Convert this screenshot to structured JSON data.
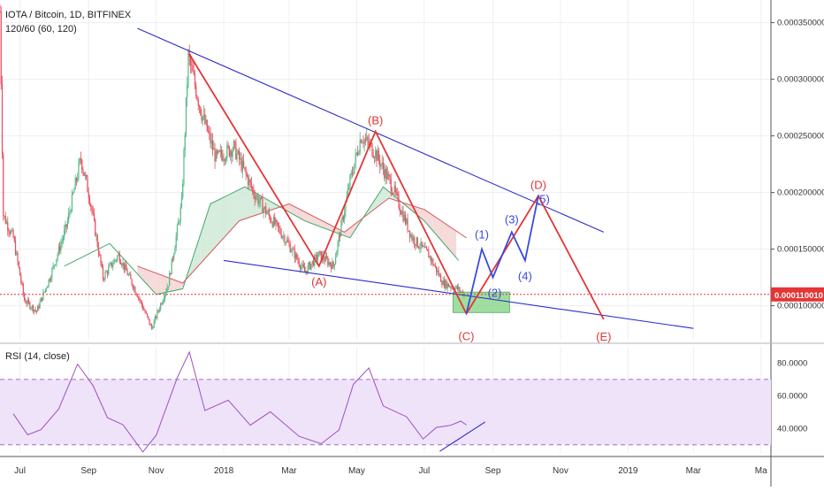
{
  "header": {
    "symbol": "IOTA / Bitcoin, 1D, BITFINEX",
    "ma_label": "120/60 (60, 120)"
  },
  "rsi_panel": {
    "label": "RSI (14, close)"
  },
  "colors": {
    "bull": "#53b987",
    "bear": "#eb4d5c",
    "trend": "#2c2ccc",
    "wave_red": "#e53535",
    "wave_blue": "#3a4ae0",
    "rsi_line": "#9c4fbf",
    "rsi_band": "#efe3fa",
    "price_tag_bg": "#e53535",
    "support_box": "#7fd47f"
  },
  "chart_data": {
    "type": "candlestick",
    "title": "IOTA / Bitcoin, 1D, BITFINEX",
    "x_tick_labels": [
      "Jul",
      "Sep",
      "Nov",
      "2018",
      "Mar",
      "May",
      "Jul",
      "Sep",
      "Nov",
      "2019",
      "Mar",
      "Ma"
    ],
    "y_tick_labels": [
      "0.000350000",
      "0.000300000",
      "0.000250000",
      "0.000200000",
      "0.000150000",
      "0.000100000"
    ],
    "last_price_label": "0.000110010",
    "ylim": [
      7e-05,
      0.00037
    ],
    "price_path": [
      [
        "2017-06-13",
        0.00036
      ],
      [
        "2017-06-16",
        0.00018
      ],
      [
        "2017-06-25",
        0.00016
      ],
      [
        "2017-07-05",
        0.000105
      ],
      [
        "2017-07-16",
        9.5e-05
      ],
      [
        "2017-07-28",
        0.000125
      ],
      [
        "2017-08-12",
        0.00017
      ],
      [
        "2017-08-25",
        0.00023
      ],
      [
        "2017-09-02",
        0.000195
      ],
      [
        "2017-09-14",
        0.000125
      ],
      [
        "2017-09-28",
        0.000145
      ],
      [
        "2017-10-15",
        0.00011
      ],
      [
        "2017-10-28",
        8e-05
      ],
      [
        "2017-11-12",
        0.00012
      ],
      [
        "2017-11-24",
        0.00019
      ],
      [
        "2017-11-30",
        0.00032
      ],
      [
        "2017-12-12",
        0.00027
      ],
      [
        "2017-12-25",
        0.00023
      ],
      [
        "2018-01-10",
        0.00024
      ],
      [
        "2018-01-28",
        0.0002
      ],
      [
        "2018-02-10",
        0.00018
      ],
      [
        "2018-02-25",
        0.00016
      ],
      [
        "2018-03-15",
        0.00013
      ],
      [
        "2018-03-28",
        0.000145
      ],
      [
        "2018-04-10",
        0.000135
      ],
      [
        "2018-04-25",
        0.00021
      ],
      [
        "2018-05-05",
        0.00025
      ],
      [
        "2018-05-18",
        0.000235
      ],
      [
        "2018-06-02",
        0.000205
      ],
      [
        "2018-06-20",
        0.00016
      ],
      [
        "2018-07-05",
        0.000145
      ],
      [
        "2018-07-18",
        0.00012
      ],
      [
        "2018-07-31",
        0.000115
      ],
      [
        "2018-08-06",
        0.00011
      ]
    ],
    "ma_fast": [
      [
        "2017-08-10",
        0.000135
      ],
      [
        "2017-09-20",
        0.000155
      ],
      [
        "2017-11-01",
        0.00011
      ],
      [
        "2017-11-25",
        0.000115
      ],
      [
        "2017-12-20",
        0.00019
      ],
      [
        "2018-01-20",
        0.000205
      ],
      [
        "2018-03-15",
        0.000175
      ],
      [
        "2018-04-25",
        0.00016
      ],
      [
        "2018-05-25",
        0.000205
      ],
      [
        "2018-07-01",
        0.000175
      ],
      [
        "2018-08-01",
        0.00014
      ]
    ],
    "ma_slow": [
      [
        "2017-10-15",
        0.000135
      ],
      [
        "2017-11-25",
        0.00012
      ],
      [
        "2018-01-15",
        0.000175
      ],
      [
        "2018-03-01",
        0.00019
      ],
      [
        "2018-04-20",
        0.000165
      ],
      [
        "2018-05-30",
        0.000195
      ],
      [
        "2018-07-01",
        0.000185
      ],
      [
        "2018-08-08",
        0.00016
      ]
    ],
    "upper_trendline": [
      [
        "2017-10-15",
        0.000345
      ],
      [
        "2018-12-10",
        0.000165
      ]
    ],
    "lower_trendline": [
      [
        "2018-01-01",
        0.00014
      ],
      [
        "2019-03-01",
        8e-05
      ]
    ],
    "elliott_abcde": [
      {
        "label": "",
        "date": "2017-12-01",
        "price": 0.000322
      },
      {
        "label": "(A)",
        "date": "2018-03-28",
        "price": 0.000135
      },
      {
        "label": "(B)",
        "date": "2018-05-18",
        "price": 0.000254
      },
      {
        "label": "(C)",
        "date": "2018-08-08",
        "price": 9.3e-05
      },
      {
        "label": "(D)",
        "date": "2018-10-12",
        "price": 0.000197
      },
      {
        "label": "(E)",
        "date": "2018-12-10",
        "price": 8.8e-05
      }
    ],
    "elliott_12345": [
      {
        "label": "",
        "date": "2018-08-08",
        "price": 9.3e-05
      },
      {
        "label": "(1)",
        "date": "2018-08-22",
        "price": 0.00015
      },
      {
        "label": "(2)",
        "date": "2018-09-01",
        "price": 0.000125
      },
      {
        "label": "(3)",
        "date": "2018-09-18",
        "price": 0.000165
      },
      {
        "label": "(4)",
        "date": "2018-09-30",
        "price": 0.00014
      },
      {
        "label": "(5)",
        "date": "2018-10-12",
        "price": 0.000197
      }
    ],
    "support_zone": {
      "from": "2018-07-27",
      "to": "2018-09-16",
      "low": 9.4e-05,
      "high": 0.000112
    },
    "rsi": {
      "ylim": [
        25,
        90
      ],
      "y_tick_labels": [
        "80.0000",
        "60.0000",
        "40.0000"
      ],
      "bands": [
        30,
        70
      ],
      "values": [
        [
          "2017-06-25",
          49
        ],
        [
          "2017-07-08",
          39
        ],
        [
          "2017-07-20",
          42
        ],
        [
          "2017-08-05",
          55
        ],
        [
          "2017-08-22",
          80
        ],
        [
          "2017-09-05",
          63
        ],
        [
          "2017-09-18",
          45
        ],
        [
          "2017-10-02",
          40
        ],
        [
          "2017-10-20",
          28
        ],
        [
          "2017-11-01",
          32
        ],
        [
          "2017-11-20",
          70
        ],
        [
          "2017-12-01",
          87
        ],
        [
          "2017-12-15",
          52
        ],
        [
          "2018-01-05",
          58
        ],
        [
          "2018-01-25",
          45
        ],
        [
          "2018-02-12",
          52
        ],
        [
          "2018-03-10",
          35
        ],
        [
          "2018-03-30",
          30
        ],
        [
          "2018-04-15",
          42
        ],
        [
          "2018-04-28",
          68
        ],
        [
          "2018-05-12",
          79
        ],
        [
          "2018-05-25",
          55
        ],
        [
          "2018-06-15",
          48
        ],
        [
          "2018-06-30",
          33
        ],
        [
          "2018-07-12",
          42
        ],
        [
          "2018-07-25",
          38
        ],
        [
          "2018-08-03",
          41
        ],
        [
          "2018-08-08",
          42
        ]
      ],
      "divergence_line": [
        [
          "2018-07-15",
          26
        ],
        [
          "2018-08-25",
          44
        ]
      ]
    }
  }
}
